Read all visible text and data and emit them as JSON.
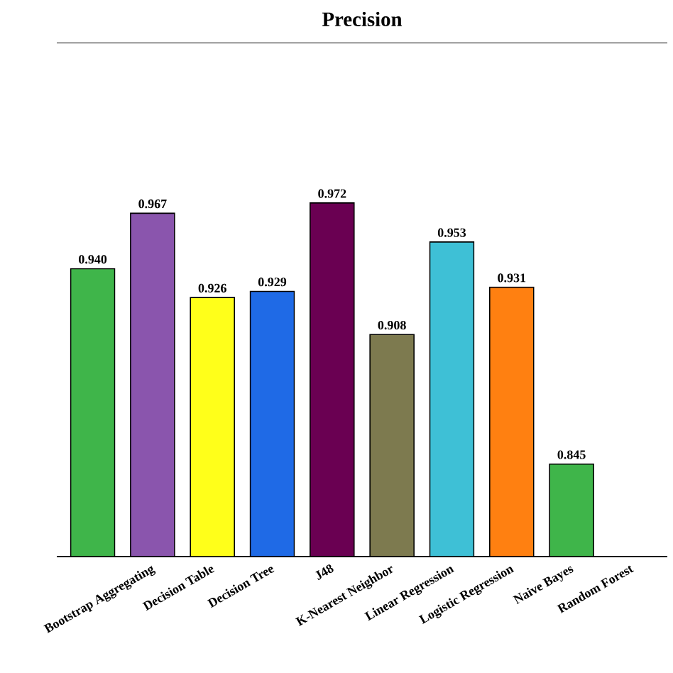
{
  "chart_data": {
    "type": "bar",
    "title": "Precision",
    "categories": [
      null,
      "Bootstrap Aggregating",
      "Decision Table",
      "Decision Tree",
      "J48",
      "K-Nearest Neighbor",
      "Linear Regression",
      "Logistic Regression",
      "Naive Bayes",
      "Random Forest"
    ],
    "values": [
      0.94,
      0.967,
      0.926,
      0.929,
      0.972,
      0.908,
      0.953,
      0.931,
      0.845,
      null
    ],
    "value_labels": [
      "0.940",
      "0.967",
      "0.926",
      "0.929",
      "0.972",
      "0.908",
      "0.953",
      "0.931",
      "0.845",
      null
    ],
    "colors": [
      "#3fb54a",
      "#8a55ad",
      "#ffff1a",
      "#1f6ae6",
      "#6a0052",
      "#7d7a4f",
      "#3ec0d6",
      "#ff8011",
      "#3fb54a",
      "#3fb54a"
    ],
    "ylim": [
      0.8,
      1.05
    ]
  }
}
